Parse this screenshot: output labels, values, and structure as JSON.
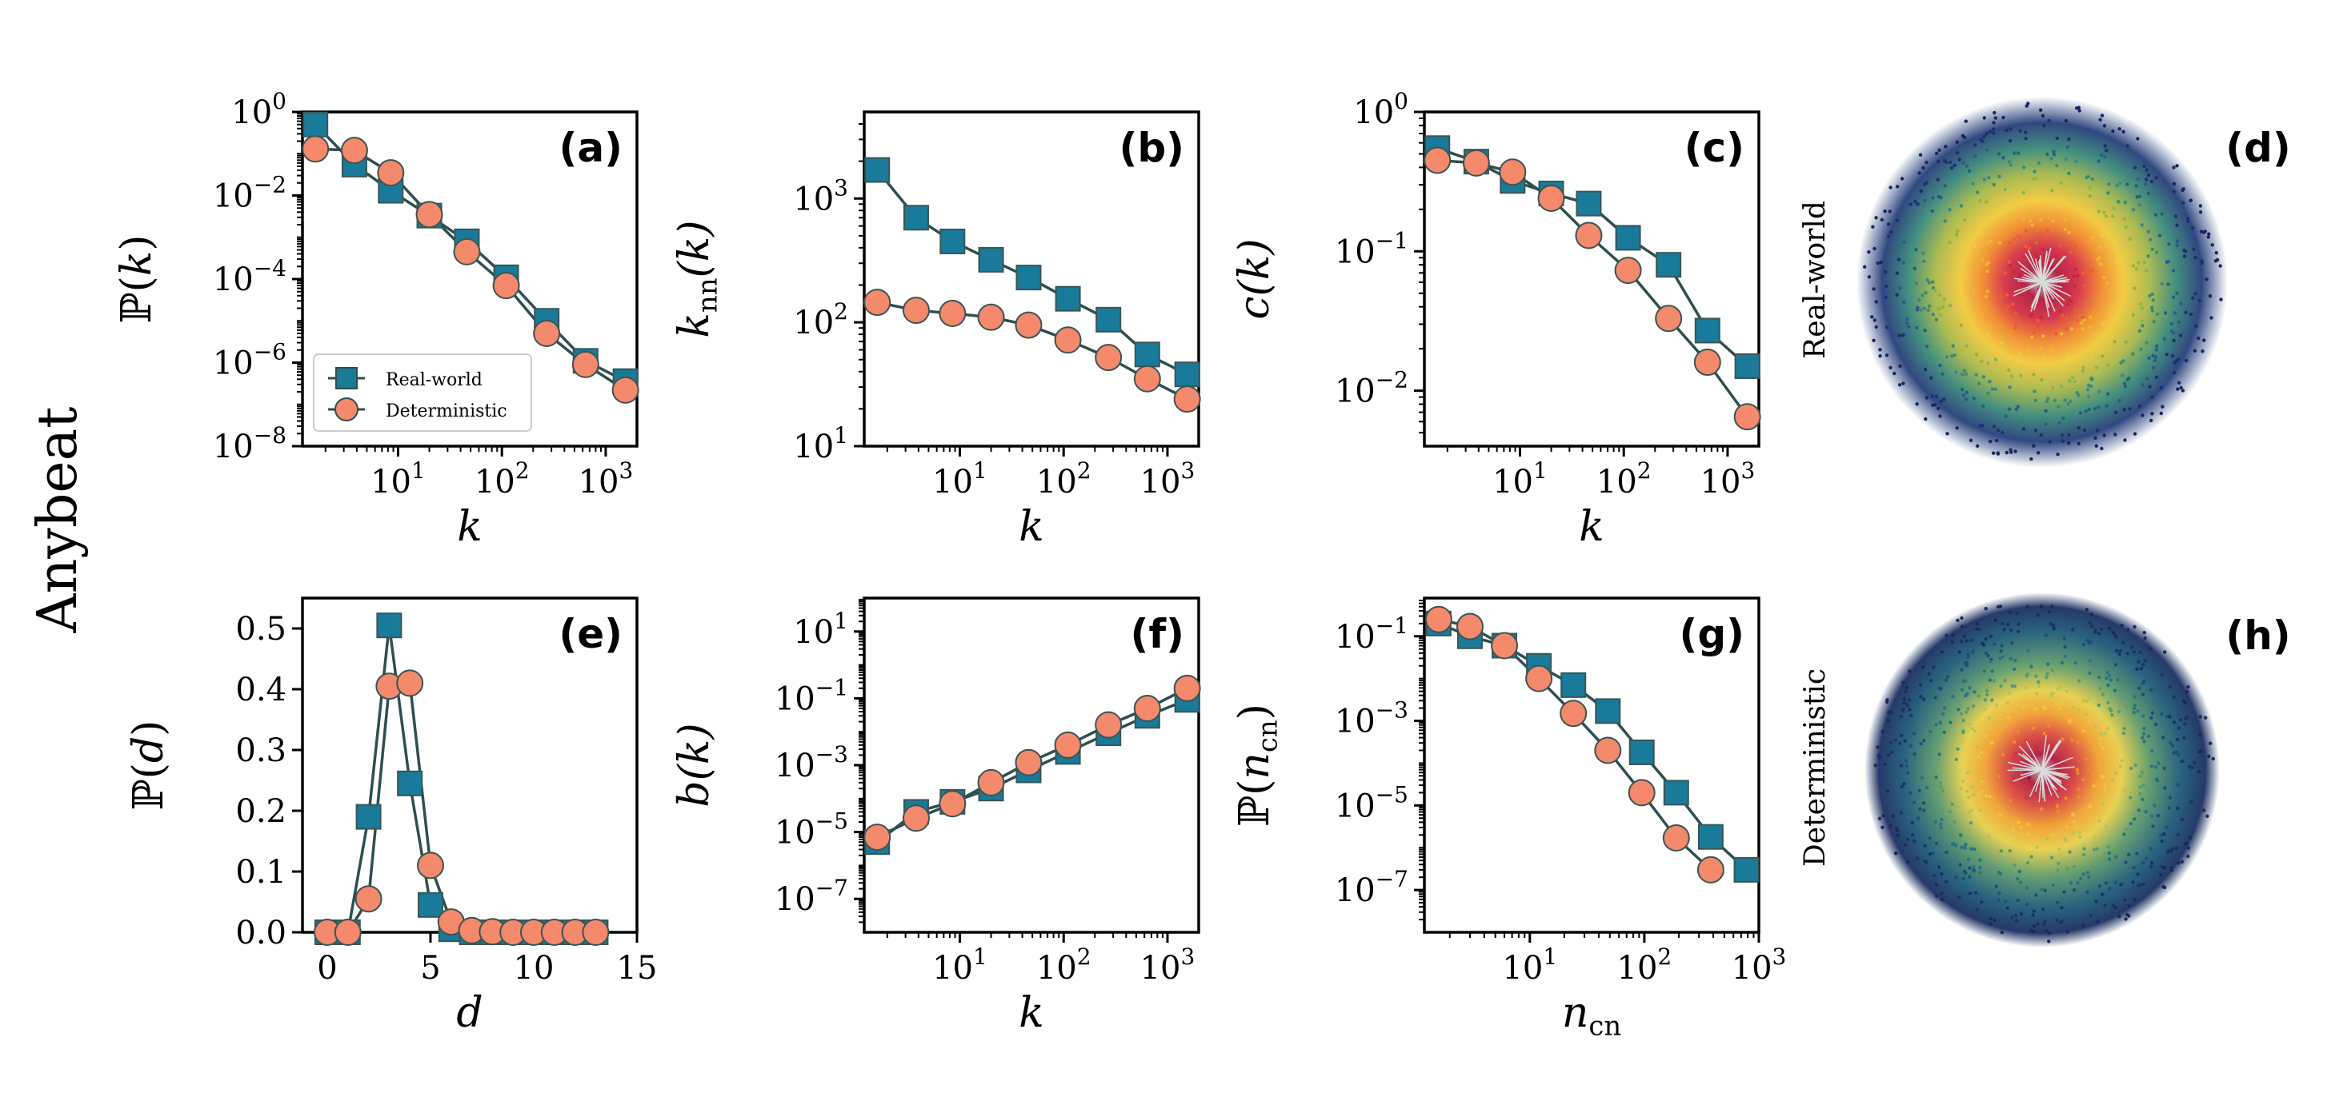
{
  "figure": {
    "row_title": "Anybeat",
    "map_labels": {
      "top": "Real-world",
      "bottom": "Deterministic"
    },
    "map_panel_labels": {
      "top": "(d)",
      "bottom": "(h)"
    }
  },
  "colors": {
    "real_world": "#1a7a9a",
    "deterministic": "#f4896b",
    "line": "#2e4f4f",
    "edge": "#3a5555"
  },
  "legend": {
    "entries": [
      "Real-world",
      "Deterministic"
    ]
  },
  "chart_data": [
    {
      "id": "a",
      "type": "line",
      "panel_label": "(a)",
      "xlabel": "k",
      "ylabel": "ℙ(k)",
      "xscale": "log",
      "yscale": "log",
      "xlim": [
        1.2,
        2000
      ],
      "ylim": [
        1e-08,
        1
      ],
      "xticks": [
        10,
        100,
        1000
      ],
      "xtick_labels": [
        "10^1",
        "10^2",
        "10^3"
      ],
      "yticks": [
        1e-08,
        1e-06,
        0.0001,
        0.01,
        1
      ],
      "ytick_labels": [
        "10^−8",
        "10^−6",
        "10^−4",
        "10^−2",
        "10^0"
      ],
      "legend": true,
      "series": [
        {
          "name": "Real-world",
          "marker": "square",
          "x": [
            1.6,
            3.8,
            8.5,
            20,
            46,
            110,
            270,
            640,
            1550
          ],
          "y": [
            0.5,
            0.055,
            0.013,
            0.0033,
            0.0008,
            0.00011,
            1e-05,
            1.1e-06,
            3.6e-07
          ]
        },
        {
          "name": "Deterministic",
          "marker": "circle",
          "x": [
            1.6,
            3.8,
            8.5,
            20,
            46,
            110,
            270,
            640,
            1550
          ],
          "y": [
            0.13,
            0.12,
            0.035,
            0.0035,
            0.00045,
            7e-05,
            5e-06,
            9e-07,
            2.2e-07
          ]
        }
      ]
    },
    {
      "id": "b",
      "type": "line",
      "panel_label": "(b)",
      "xlabel": "k",
      "ylabel": "knn(k)",
      "xscale": "log",
      "yscale": "log",
      "xlim": [
        1.2,
        2000
      ],
      "ylim": [
        10,
        5000
      ],
      "xticks": [
        10,
        100,
        1000
      ],
      "xtick_labels": [
        "10^1",
        "10^2",
        "10^3"
      ],
      "yticks": [
        10,
        100,
        1000
      ],
      "ytick_labels": [
        "10^1",
        "10^2",
        "10^3"
      ],
      "series": [
        {
          "name": "Real-world",
          "marker": "square",
          "x": [
            1.6,
            3.8,
            8.5,
            20,
            46,
            110,
            270,
            640,
            1550
          ],
          "y": [
            1700,
            700,
            450,
            320,
            230,
            155,
            105,
            55,
            38
          ]
        },
        {
          "name": "Deterministic",
          "marker": "circle",
          "x": [
            1.6,
            3.8,
            8.5,
            20,
            46,
            110,
            270,
            640,
            1550
          ],
          "y": [
            145,
            125,
            118,
            110,
            95,
            72,
            52,
            35,
            24
          ]
        }
      ]
    },
    {
      "id": "c",
      "type": "line",
      "panel_label": "(c)",
      "xlabel": "k",
      "ylabel": "c(k)",
      "xscale": "log",
      "yscale": "log",
      "xlim": [
        1.2,
        2000
      ],
      "ylim": [
        0.004,
        1
      ],
      "xticks": [
        10,
        100,
        1000
      ],
      "xtick_labels": [
        "10^1",
        "10^2",
        "10^3"
      ],
      "yticks": [
        0.01,
        0.1,
        1
      ],
      "ytick_labels": [
        "10^−2",
        "10^−1",
        "10^0"
      ],
      "series": [
        {
          "name": "Real-world",
          "marker": "square",
          "x": [
            1.6,
            3.8,
            8.5,
            20,
            46,
            110,
            270,
            640,
            1550
          ],
          "y": [
            0.55,
            0.44,
            0.32,
            0.26,
            0.22,
            0.125,
            0.08,
            0.027,
            0.015
          ]
        },
        {
          "name": "Deterministic",
          "marker": "circle",
          "x": [
            1.6,
            3.8,
            8.5,
            20,
            46,
            110,
            270,
            640,
            1550
          ],
          "y": [
            0.45,
            0.43,
            0.37,
            0.24,
            0.13,
            0.073,
            0.033,
            0.016,
            0.0065
          ]
        }
      ]
    },
    {
      "id": "e",
      "type": "line",
      "panel_label": "(e)",
      "xlabel": "d",
      "ylabel": "ℙ(d)",
      "xscale": "linear",
      "yscale": "linear",
      "xlim": [
        -1.2,
        15
      ],
      "ylim": [
        0,
        0.55
      ],
      "xticks": [
        0,
        5,
        10,
        15
      ],
      "xtick_labels": [
        "0",
        "5",
        "10",
        "15"
      ],
      "yticks": [
        0,
        0.1,
        0.2,
        0.3,
        0.4,
        0.5
      ],
      "ytick_labels": [
        "0.0",
        "0.1",
        "0.2",
        "0.3",
        "0.4",
        "0.5"
      ],
      "series": [
        {
          "name": "Real-world",
          "marker": "square",
          "x": [
            0,
            1,
            2,
            3,
            4,
            5,
            6,
            7,
            8,
            9,
            10,
            11,
            12,
            13
          ],
          "y": [
            0.0,
            0.0,
            0.19,
            0.505,
            0.245,
            0.045,
            0.005,
            0.0,
            0.0,
            0.0,
            0.0,
            0.0,
            0.0,
            0.0
          ]
        },
        {
          "name": "Deterministic",
          "marker": "circle",
          "x": [
            0,
            1,
            2,
            3,
            4,
            5,
            6,
            7,
            8,
            9,
            10,
            11,
            12,
            13
          ],
          "y": [
            0.0,
            0.0,
            0.055,
            0.405,
            0.41,
            0.11,
            0.017,
            0.003,
            0.001,
            0.0,
            0.0,
            0.0,
            0.0,
            0.0
          ]
        }
      ]
    },
    {
      "id": "f",
      "type": "line",
      "panel_label": "(f)",
      "xlabel": "k",
      "ylabel": "b(k)",
      "xscale": "log",
      "yscale": "log",
      "xlim": [
        1.2,
        2000
      ],
      "ylim": [
        1e-08,
        100
      ],
      "xticks": [
        10,
        100,
        1000
      ],
      "xtick_labels": [
        "10^1",
        "10^2",
        "10^3"
      ],
      "yticks": [
        1e-07,
        1e-05,
        0.001,
        0.1,
        10
      ],
      "ytick_labels": [
        "10^−7",
        "10^−5",
        "10^−3",
        "10^−1",
        "10^1"
      ],
      "series": [
        {
          "name": "Real-world",
          "marker": "square",
          "x": [
            1.6,
            3.8,
            8.5,
            20,
            46,
            110,
            270,
            640,
            1550
          ],
          "y": [
            5e-06,
            4e-05,
            8e-05,
            0.0002,
            0.0007,
            0.0025,
            0.009,
            0.03,
            0.09
          ]
        },
        {
          "name": "Deterministic",
          "marker": "circle",
          "x": [
            1.6,
            3.8,
            8.5,
            20,
            46,
            110,
            270,
            640,
            1550
          ],
          "y": [
            7e-06,
            2.6e-05,
            7e-05,
            0.0003,
            0.0012,
            0.004,
            0.016,
            0.05,
            0.2
          ]
        }
      ]
    },
    {
      "id": "g",
      "type": "line",
      "panel_label": "(g)",
      "xlabel": "ncn",
      "ylabel": "ℙ(ncn)",
      "xscale": "log",
      "yscale": "log",
      "xlim": [
        1.2,
        1000
      ],
      "ylim": [
        1e-08,
        0.8
      ],
      "xticks": [
        10,
        100,
        1000
      ],
      "xtick_labels": [
        "10^1",
        "10^2",
        "10^3"
      ],
      "yticks": [
        1e-07,
        1e-05,
        0.001,
        0.1
      ],
      "ytick_labels": [
        "10^−7",
        "10^−5",
        "10^−3",
        "10^−1"
      ],
      "series": [
        {
          "name": "Real-world",
          "marker": "square",
          "x": [
            1.6,
            3,
            6,
            12,
            24,
            48,
            95,
            190,
            380,
            780
          ],
          "y": [
            0.2,
            0.1,
            0.06,
            0.02,
            0.007,
            0.0017,
            0.00018,
            2e-05,
            1.8e-06,
            3e-07
          ]
        },
        {
          "name": "Deterministic",
          "marker": "circle",
          "x": [
            1.6,
            3,
            6,
            12,
            24,
            48,
            95,
            190,
            380
          ],
          "y": [
            0.25,
            0.17,
            0.06,
            0.01,
            0.0015,
            0.0002,
            2e-05,
            1.7e-06,
            3e-07
          ]
        }
      ]
    }
  ]
}
